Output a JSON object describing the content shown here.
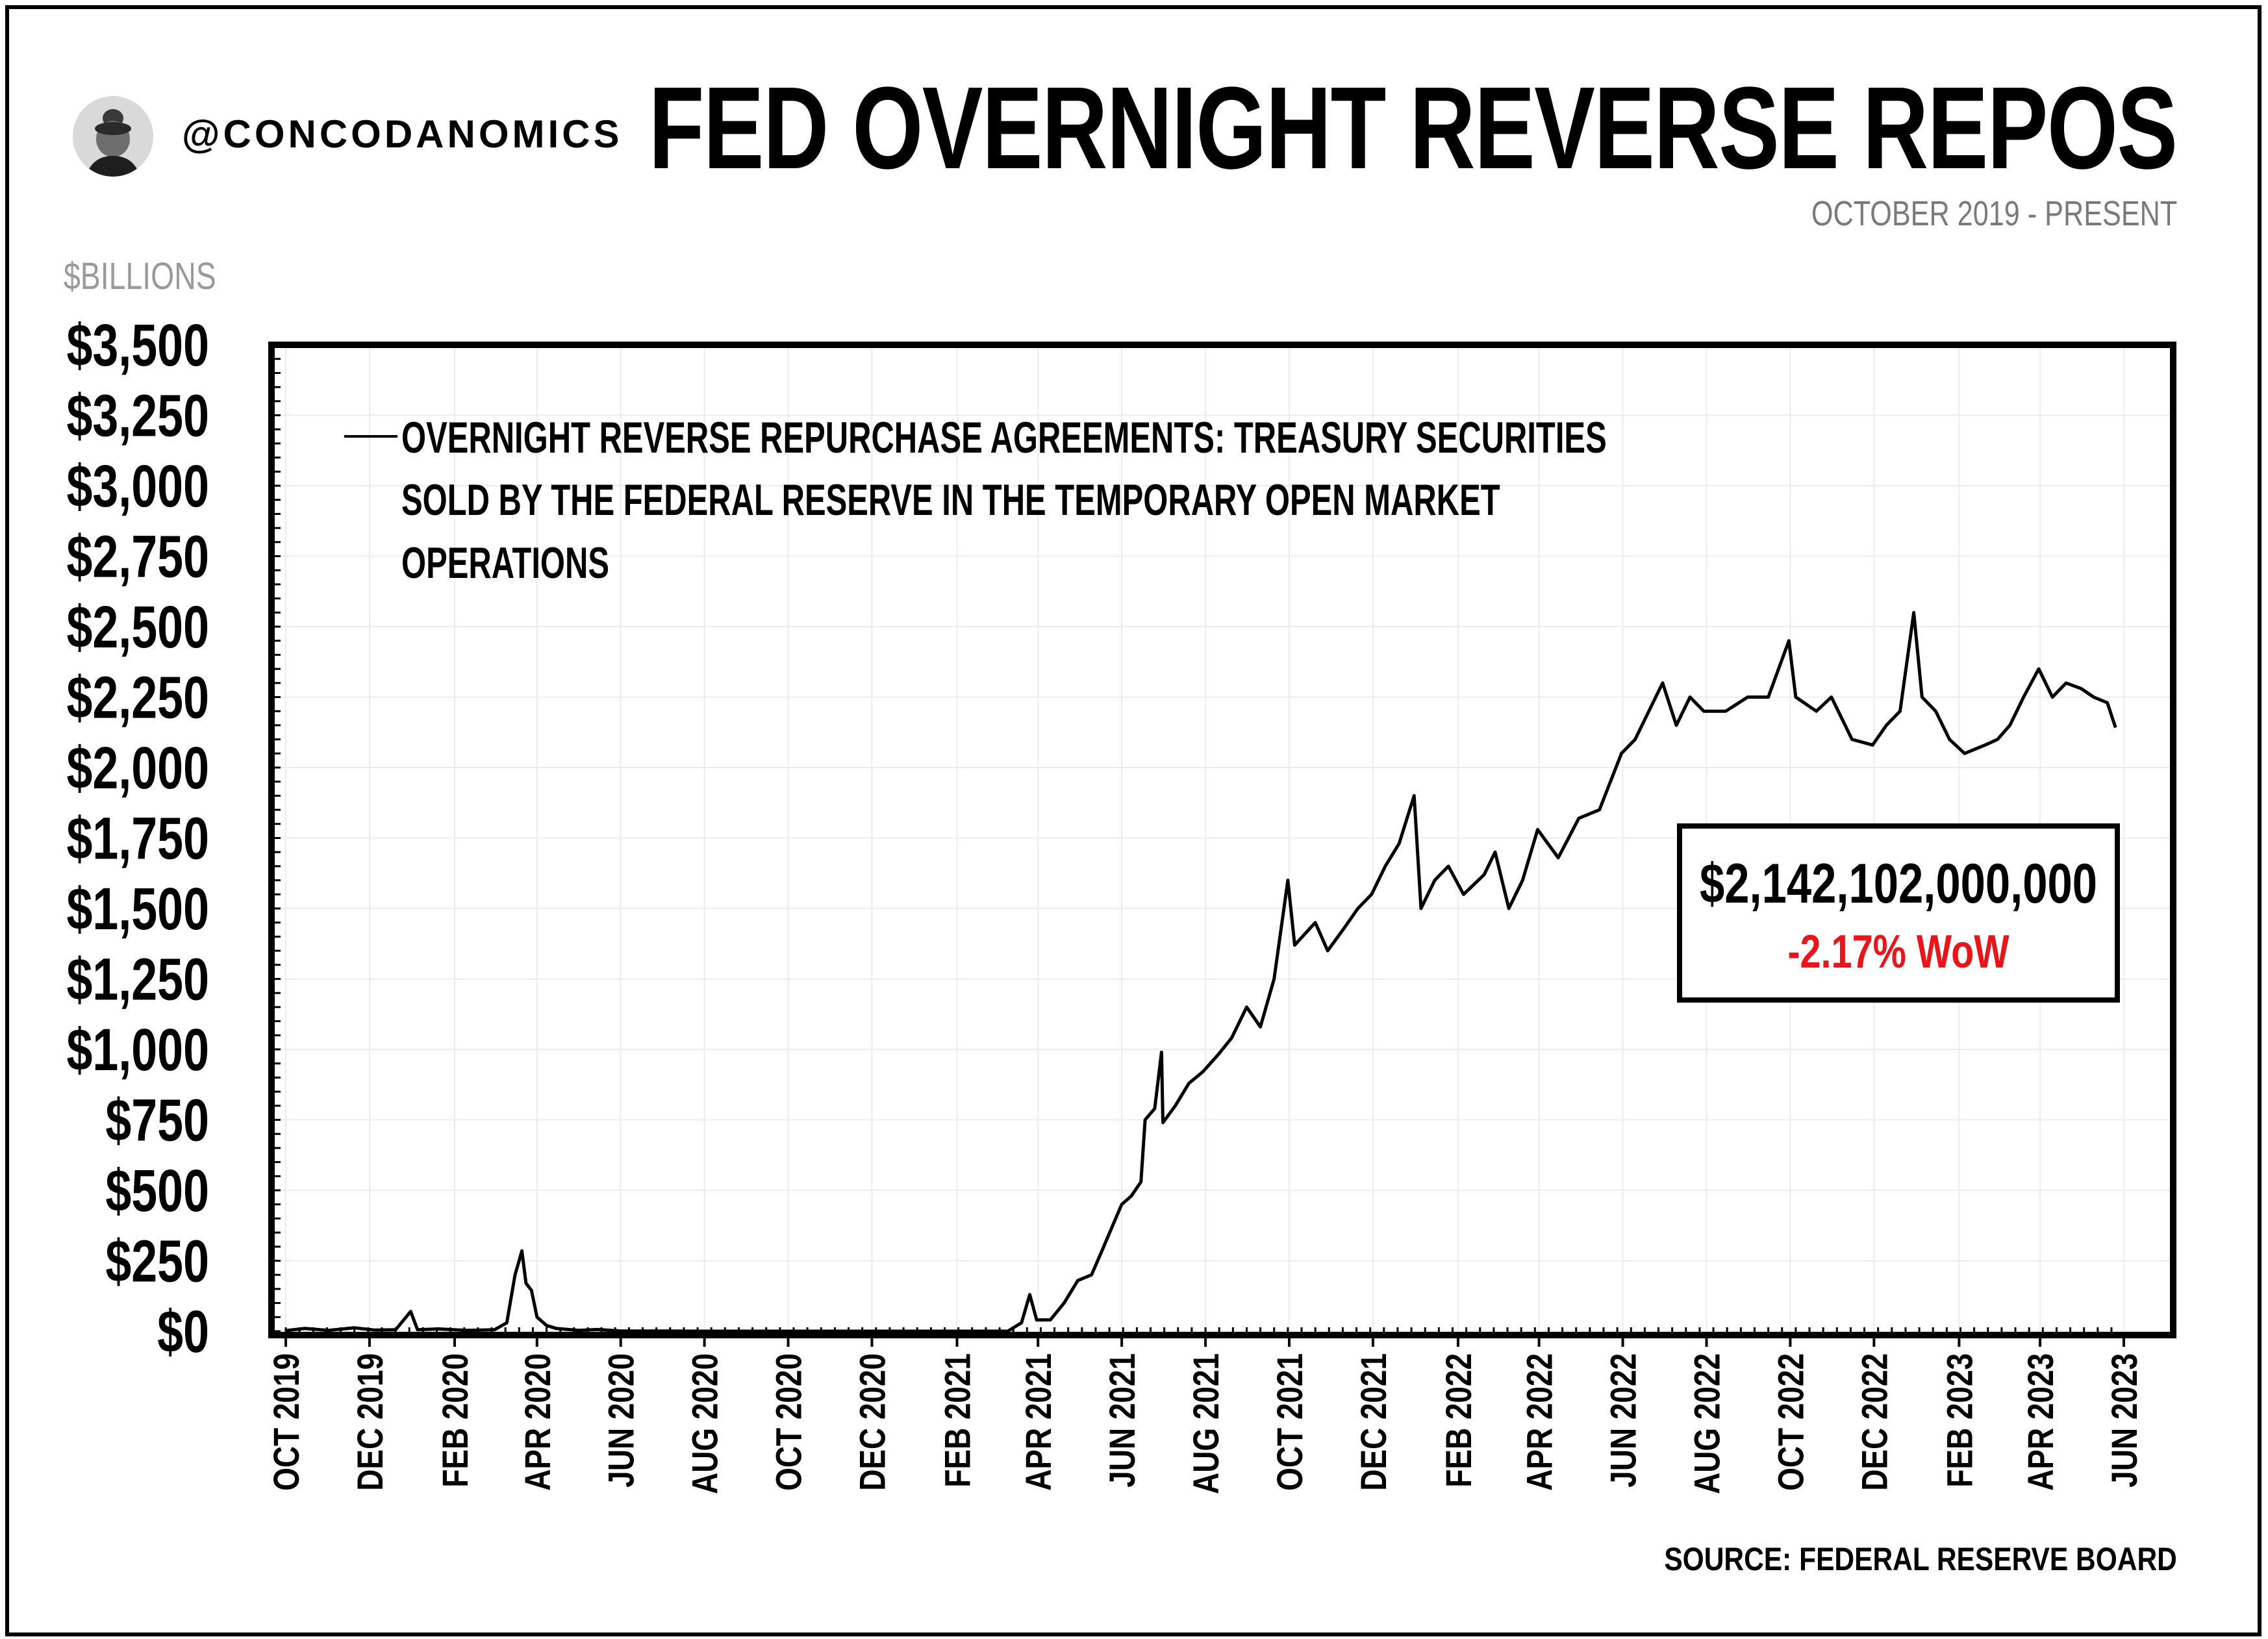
{
  "header": {
    "handle": "@CONCODANOMICS",
    "title": "FED OVERNIGHT REVERSE REPOS",
    "subtitle": "OCTOBER 2019 - PRESENT",
    "unit_label": "$BILLIONS"
  },
  "footer": {
    "source": "SOURCE: FEDERAL RESERVE BOARD"
  },
  "callout": {
    "value": "$2,142,102,000,000",
    "change": "-2.17% WoW",
    "change_color": "#e8151b"
  },
  "legend_lines": [
    "OVERNIGHT REVERSE REPURCHASE AGREEMENTS: TREASURY SECURITIES",
    "SOLD BY THE FEDERAL RESERVE IN THE TEMPORARY OPEN MARKET",
    "OPERATIONS"
  ],
  "chart_data": {
    "type": "line",
    "x_range": [
      "2019-10-01",
      "2023-06-01"
    ],
    "ylim": [
      0,
      3500
    ],
    "y_ticks": [
      0,
      250,
      500,
      750,
      1000,
      1250,
      1500,
      1750,
      2000,
      2250,
      2500,
      2750,
      3000,
      3250,
      3500
    ],
    "y_tick_labels": [
      "$0",
      "$250",
      "$500",
      "$750",
      "$1,000",
      "$1,250",
      "$1,500",
      "$1,750",
      "$2,000",
      "$2,250",
      "$2,500",
      "$2,750",
      "$3,000",
      "$3,250",
      "$3,500"
    ],
    "x_ticks": [
      "2019-10-01",
      "2019-12-01",
      "2020-02-01",
      "2020-04-01",
      "2020-06-01",
      "2020-08-01",
      "2020-10-01",
      "2020-12-01",
      "2021-02-01",
      "2021-04-01",
      "2021-06-01",
      "2021-08-01",
      "2021-10-01",
      "2021-12-01",
      "2022-02-01",
      "2022-04-01",
      "2022-06-01",
      "2022-08-01",
      "2022-10-01",
      "2022-12-01",
      "2023-02-01",
      "2023-04-01",
      "2023-06-01"
    ],
    "x_tick_labels": [
      "OCT 2019",
      "DEC 2019",
      "FEB 2020",
      "APR 2020",
      "JUN 2020",
      "AUG 2020",
      "OCT 2020",
      "DEC 2020",
      "FEB 2021",
      "APR 2021",
      "JUN 2021",
      "AUG 2021",
      "OCT 2021",
      "DEC 2021",
      "FEB 2022",
      "APR 2022",
      "JUN 2022",
      "AUG 2022",
      "OCT 2022",
      "DEC 2022",
      "FEB 2023",
      "APR 2023",
      "JUN 2023"
    ],
    "grid": true,
    "legend_position": "top-left",
    "series": [
      {
        "name": "OVERNIGHT REVERSE REPURCHASE AGREEMENTS: TREASURY SECURITIES SOLD BY THE FEDERAL RESERVE IN THE TEMPORARY OPEN MARKET OPERATIONS",
        "color": "#000000",
        "points": [
          [
            "2019-10-01",
            2
          ],
          [
            "2019-10-15",
            10
          ],
          [
            "2019-11-01",
            3
          ],
          [
            "2019-11-20",
            12
          ],
          [
            "2019-12-05",
            4
          ],
          [
            "2019-12-20",
            5
          ],
          [
            "2019-12-31",
            70
          ],
          [
            "2020-01-05",
            5
          ],
          [
            "2020-01-20",
            8
          ],
          [
            "2020-02-10",
            3
          ],
          [
            "2020-03-01",
            5
          ],
          [
            "2020-03-10",
            30
          ],
          [
            "2020-03-16",
            200
          ],
          [
            "2020-03-19",
            250
          ],
          [
            "2020-03-21",
            285
          ],
          [
            "2020-03-24",
            170
          ],
          [
            "2020-03-28",
            145
          ],
          [
            "2020-04-01",
            50
          ],
          [
            "2020-04-08",
            20
          ],
          [
            "2020-04-15",
            10
          ],
          [
            "2020-05-01",
            3
          ],
          [
            "2020-05-15",
            6
          ],
          [
            "2020-06-01",
            1
          ],
          [
            "2020-08-01",
            0
          ],
          [
            "2020-12-01",
            0
          ],
          [
            "2021-03-10",
            0
          ],
          [
            "2021-03-20",
            30
          ],
          [
            "2021-03-26",
            130
          ],
          [
            "2021-03-31",
            40
          ],
          [
            "2021-04-10",
            40
          ],
          [
            "2021-04-20",
            100
          ],
          [
            "2021-04-30",
            180
          ],
          [
            "2021-05-10",
            200
          ],
          [
            "2021-05-18",
            290
          ],
          [
            "2021-05-25",
            370
          ],
          [
            "2021-06-01",
            450
          ],
          [
            "2021-06-08",
            480
          ],
          [
            "2021-06-15",
            530
          ],
          [
            "2021-06-18",
            750
          ],
          [
            "2021-06-25",
            790
          ],
          [
            "2021-06-30",
            990
          ],
          [
            "2021-07-01",
            740
          ],
          [
            "2021-07-10",
            800
          ],
          [
            "2021-07-20",
            880
          ],
          [
            "2021-07-30",
            920
          ],
          [
            "2021-08-10",
            980
          ],
          [
            "2021-08-20",
            1040
          ],
          [
            "2021-08-31",
            1150
          ],
          [
            "2021-09-10",
            1080
          ],
          [
            "2021-09-20",
            1250
          ],
          [
            "2021-09-30",
            1600
          ],
          [
            "2021-10-05",
            1370
          ],
          [
            "2021-10-20",
            1450
          ],
          [
            "2021-10-29",
            1350
          ],
          [
            "2021-11-10",
            1430
          ],
          [
            "2021-11-20",
            1500
          ],
          [
            "2021-11-30",
            1550
          ],
          [
            "2021-12-10",
            1650
          ],
          [
            "2021-12-20",
            1730
          ],
          [
            "2021-12-31",
            1900
          ],
          [
            "2022-01-05",
            1500
          ],
          [
            "2022-01-15",
            1600
          ],
          [
            "2022-01-25",
            1650
          ],
          [
            "2022-02-05",
            1550
          ],
          [
            "2022-02-20",
            1620
          ],
          [
            "2022-02-28",
            1700
          ],
          [
            "2022-03-10",
            1500
          ],
          [
            "2022-03-20",
            1600
          ],
          [
            "2022-03-31",
            1780
          ],
          [
            "2022-04-15",
            1680
          ],
          [
            "2022-04-30",
            1820
          ],
          [
            "2022-05-15",
            1850
          ],
          [
            "2022-05-31",
            2050
          ],
          [
            "2022-06-10",
            2100
          ],
          [
            "2022-06-20",
            2200
          ],
          [
            "2022-06-30",
            2300
          ],
          [
            "2022-07-10",
            2150
          ],
          [
            "2022-07-20",
            2250
          ],
          [
            "2022-07-30",
            2200
          ],
          [
            "2022-08-15",
            2200
          ],
          [
            "2022-08-31",
            2250
          ],
          [
            "2022-09-15",
            2250
          ],
          [
            "2022-09-30",
            2450
          ],
          [
            "2022-10-05",
            2250
          ],
          [
            "2022-10-20",
            2200
          ],
          [
            "2022-10-31",
            2250
          ],
          [
            "2022-11-15",
            2100
          ],
          [
            "2022-11-30",
            2080
          ],
          [
            "2022-12-10",
            2150
          ],
          [
            "2022-12-20",
            2200
          ],
          [
            "2022-12-30",
            2550
          ],
          [
            "2023-01-05",
            2250
          ],
          [
            "2023-01-15",
            2200
          ],
          [
            "2023-01-25",
            2100
          ],
          [
            "2023-02-05",
            2050
          ],
          [
            "2023-02-20",
            2080
          ],
          [
            "2023-03-01",
            2100
          ],
          [
            "2023-03-10",
            2150
          ],
          [
            "2023-03-20",
            2250
          ],
          [
            "2023-03-31",
            2350
          ],
          [
            "2023-04-10",
            2250
          ],
          [
            "2023-04-20",
            2300
          ],
          [
            "2023-05-01",
            2280
          ],
          [
            "2023-05-10",
            2250
          ],
          [
            "2023-05-20",
            2230
          ],
          [
            "2023-05-26",
            2142
          ]
        ]
      }
    ]
  }
}
